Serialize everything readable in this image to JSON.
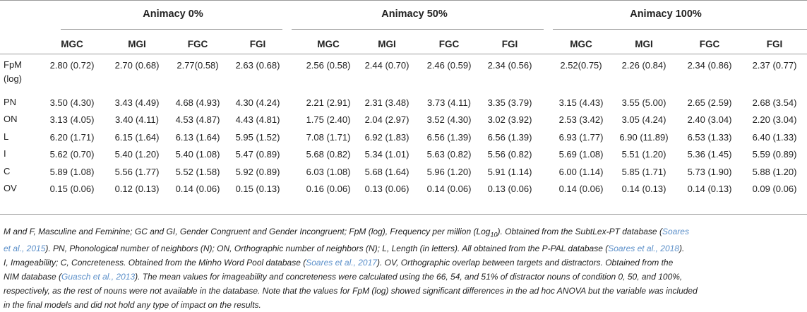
{
  "groups": [
    {
      "title": "Animacy 0%",
      "cols": [
        "MGC",
        "MGI",
        "FGC",
        "FGI"
      ]
    },
    {
      "title": "Animacy 50%",
      "cols": [
        "MGC",
        "MGI",
        "FGC",
        "FGI"
      ]
    },
    {
      "title": "Animacy 100%",
      "cols": [
        "MGC",
        "MGI",
        "FGC",
        "FGI"
      ]
    }
  ],
  "rows": [
    {
      "label": "FpM (log)",
      "values": [
        "2.80 (0.72)",
        "2.70 (0.68)",
        "2.77(0.58)",
        "2.63 (0.68)",
        "2.56 (0.58)",
        "2.44 (0.70)",
        "2.46 (0.59)",
        "2.34 (0.56)",
        "2.52(0.75)",
        "2.26 (0.84)",
        "2.34 (0.86)",
        "2.37 (0.77)"
      ]
    },
    {
      "label": "PN",
      "values": [
        "3.50 (4.30)",
        "3.43 (4.49)",
        "4.68 (4.93)",
        "4.30 (4.24)",
        "2.21 (2.91)",
        "2.31 (3.48)",
        "3.73 (4.11)",
        "3.35 (3.79)",
        "3.15 (4.43)",
        "3.55 (5.00)",
        "2.65 (2.59)",
        "2.68 (3.54)"
      ]
    },
    {
      "label": "ON",
      "values": [
        "3.13 (4.05)",
        "3.40 (4.11)",
        "4.53 (4.87)",
        "4.43 (4.81)",
        "1.75 (2.40)",
        "2.04 (2.97)",
        "3.52 (4.30)",
        "3.02 (3.92)",
        "2.53 (3.42)",
        "3.05 (4.24)",
        "2.40 (3.04)",
        "2.20 (3.04)"
      ]
    },
    {
      "label": "L",
      "values": [
        "6.20 (1.71)",
        "6.15 (1.64)",
        "6.13 (1.64)",
        "5.95 (1.52)",
        "7.08 (1.71)",
        "6.92 (1.83)",
        "6.56 (1.39)",
        "6.56 (1.39)",
        "6.93 (1.77)",
        "6.90 (11.89)",
        "6.53 (1.33)",
        "6.40 (1.33)"
      ]
    },
    {
      "label": "I",
      "values": [
        "5.62 (0.70)",
        "5.40 (1.20)",
        "5.40 (1.08)",
        "5.47 (0.89)",
        "5.68 (0.82)",
        "5.34 (1.01)",
        "5.63 (0.82)",
        "5.56 (0.82)",
        "5.69 (1.08)",
        "5.51 (1.20)",
        "5.36 (1.45)",
        "5.59 (0.89)"
      ]
    },
    {
      "label": "C",
      "values": [
        "5.89 (1.08)",
        "5.56 (1.77)",
        "5.52 (1.58)",
        "5.92 (0.89)",
        "6.03 (1.08)",
        "5.68 (1.64)",
        "5.96 (1.20)",
        "5.91 (1.14)",
        "6.00 (1.14)",
        "5.85 (1.71)",
        "5.73 (1.90)",
        "5.88 (1.20)"
      ]
    },
    {
      "label": "OV",
      "values": [
        "0.15 (0.06)",
        "0.12 (0.13)",
        "0.14 (0.06)",
        "0.15 (0.13)",
        "0.16 (0.06)",
        "0.13 (0.06)",
        "0.14 (0.06)",
        "0.13 (0.06)",
        "0.14 (0.06)",
        "0.14 (0.13)",
        "0.14 (0.13)",
        "0.09 (0.06)"
      ]
    }
  ],
  "footnote": {
    "line1_a": "M and F, Masculine and Feminine; GC and GI, Gender Congruent and Gender Incongruent; FpM (log), Frequency per million (Log",
    "line1_sub": "10",
    "line1_b": "). Obtained from the SubtLex-PT database (",
    "line1_ref": "Soares",
    "line2_ref": "et al., 2015",
    "line2_b": "). PN, Phonological number of neighbors (N); ON, Orthographic number of neighbors (N); L, Length (in letters). All obtained from the P-PAL database (",
    "line2_ref2": "Soares et al., 2018",
    "line2_c": ").",
    "line3_a": "I, Imageability; C, Concreteness. Obtained from the Minho Word Pool database (",
    "line3_ref": "Soares et al., 2017",
    "line3_b": "). OV, Orthographic overlap between targets and distractors. Obtained from the",
    "line4_a": "NIM database (",
    "line4_ref": "Guasch et al., 2013",
    "line4_b": "). The mean values for imageability and concreteness were calculated using the 66, 54, and 51% of distractor nouns of condition 0, 50, and 100%,",
    "line5": "respectively, as the rest of nouns were not available in the database. Note that the values for FpM (log) showed significant differences in the ad hoc ANOVA but the variable was included",
    "line6": "in the final models and did not hold any type of impact on the results."
  }
}
